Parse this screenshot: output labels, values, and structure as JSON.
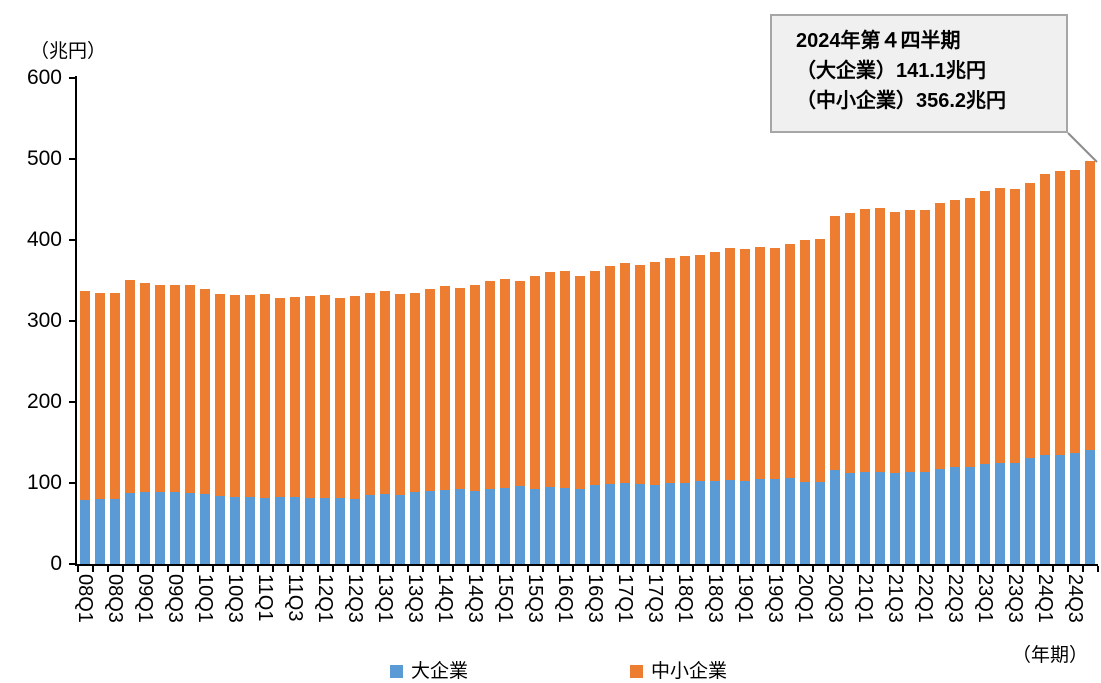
{
  "chart_data": {
    "type": "bar",
    "stacked": true,
    "title": "",
    "y_axis_unit_label": "（兆円）",
    "x_axis_unit_label": "（年期）",
    "ylim": [
      0,
      600
    ],
    "y_ticks": [
      0,
      100,
      200,
      300,
      400,
      500,
      600
    ],
    "grid": false,
    "legend_position": "bottom",
    "x_label_every": 2,
    "axis_color": "#000000",
    "categories": [
      "08Q1",
      "08Q2",
      "08Q3",
      "08Q4",
      "09Q1",
      "09Q2",
      "09Q3",
      "09Q4",
      "10Q1",
      "10Q2",
      "10Q3",
      "10Q4",
      "11Q1",
      "11Q2",
      "11Q3",
      "11Q4",
      "12Q1",
      "12Q2",
      "12Q3",
      "12Q4",
      "13Q1",
      "13Q2",
      "13Q3",
      "13Q4",
      "14Q1",
      "14Q2",
      "14Q3",
      "14Q4",
      "15Q1",
      "15Q2",
      "15Q3",
      "15Q4",
      "16Q1",
      "16Q2",
      "16Q3",
      "16Q4",
      "17Q1",
      "17Q2",
      "17Q3",
      "17Q4",
      "18Q1",
      "18Q2",
      "18Q3",
      "18Q4",
      "19Q1",
      "19Q2",
      "19Q3",
      "19Q4",
      "20Q1",
      "20Q2",
      "20Q3",
      "20Q4",
      "21Q1",
      "21Q2",
      "21Q3",
      "21Q4",
      "22Q1",
      "22Q2",
      "22Q3",
      "22Q4",
      "23Q1",
      "23Q2",
      "23Q3",
      "23Q4",
      "24Q1",
      "24Q2",
      "24Q3",
      "24Q4"
    ],
    "series": [
      {
        "name": "大企業",
        "color": "#5B9BD5",
        "values": [
          79,
          80,
          80,
          88,
          89,
          89,
          89,
          88,
          86,
          84,
          83,
          83,
          82,
          83,
          83,
          82,
          81,
          81,
          80,
          85,
          87,
          85,
          89,
          90,
          91,
          93,
          90,
          93,
          94,
          96,
          93,
          95,
          94,
          93,
          98,
          99,
          100,
          99,
          98,
          100,
          100,
          102,
          103,
          104,
          102,
          105,
          105,
          106,
          101,
          101,
          116,
          112,
          114,
          113,
          112,
          113,
          114,
          117,
          120,
          120,
          124,
          125,
          125,
          131,
          135,
          134,
          137,
          141.1
        ]
      },
      {
        "name": "中小企業",
        "color": "#ED7D31",
        "values": [
          258,
          254,
          255,
          263,
          258,
          255,
          256,
          256,
          254,
          249,
          249,
          249,
          251,
          245,
          247,
          249,
          251,
          248,
          251,
          249,
          250,
          248,
          246,
          250,
          252,
          248,
          254,
          256,
          258,
          253,
          262,
          265,
          268,
          263,
          264,
          269,
          271,
          270,
          275,
          278,
          280,
          279,
          282,
          286,
          287,
          286,
          285,
          289,
          299,
          300,
          314,
          321,
          324,
          326,
          323,
          324,
          323,
          329,
          329,
          332,
          337,
          339,
          338,
          339,
          347,
          351,
          349,
          356.2
        ]
      }
    ],
    "annotation": {
      "lines": [
        "2024年第４四半期",
        "（大企業）141.1兆円",
        "（中小企業）356.2兆円"
      ],
      "fill": "#F0F0F0",
      "border": "#A6A6A6"
    }
  }
}
